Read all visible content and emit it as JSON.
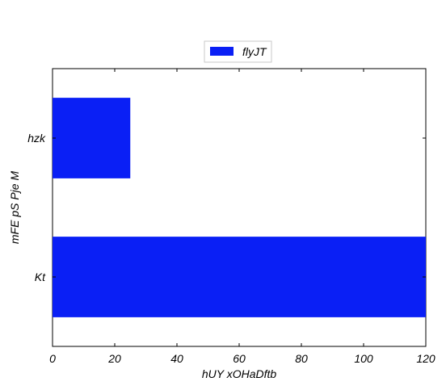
{
  "chart_data": {
    "type": "bar",
    "orientation": "horizontal",
    "categories": [
      "hzk",
      "Kt"
    ],
    "series": [
      {
        "name": "flyJT",
        "values": [
          25,
          120
        ],
        "color": "#0a1ff5"
      }
    ],
    "xlabel": "hUY xOHaDftb",
    "ylabel": "mFE pS Pje M",
    "xlim": [
      0,
      120
    ],
    "xticks": [
      "0",
      "20",
      "40",
      "60",
      "80",
      "100",
      "120"
    ],
    "grid": false,
    "legend_position": "top-center"
  }
}
